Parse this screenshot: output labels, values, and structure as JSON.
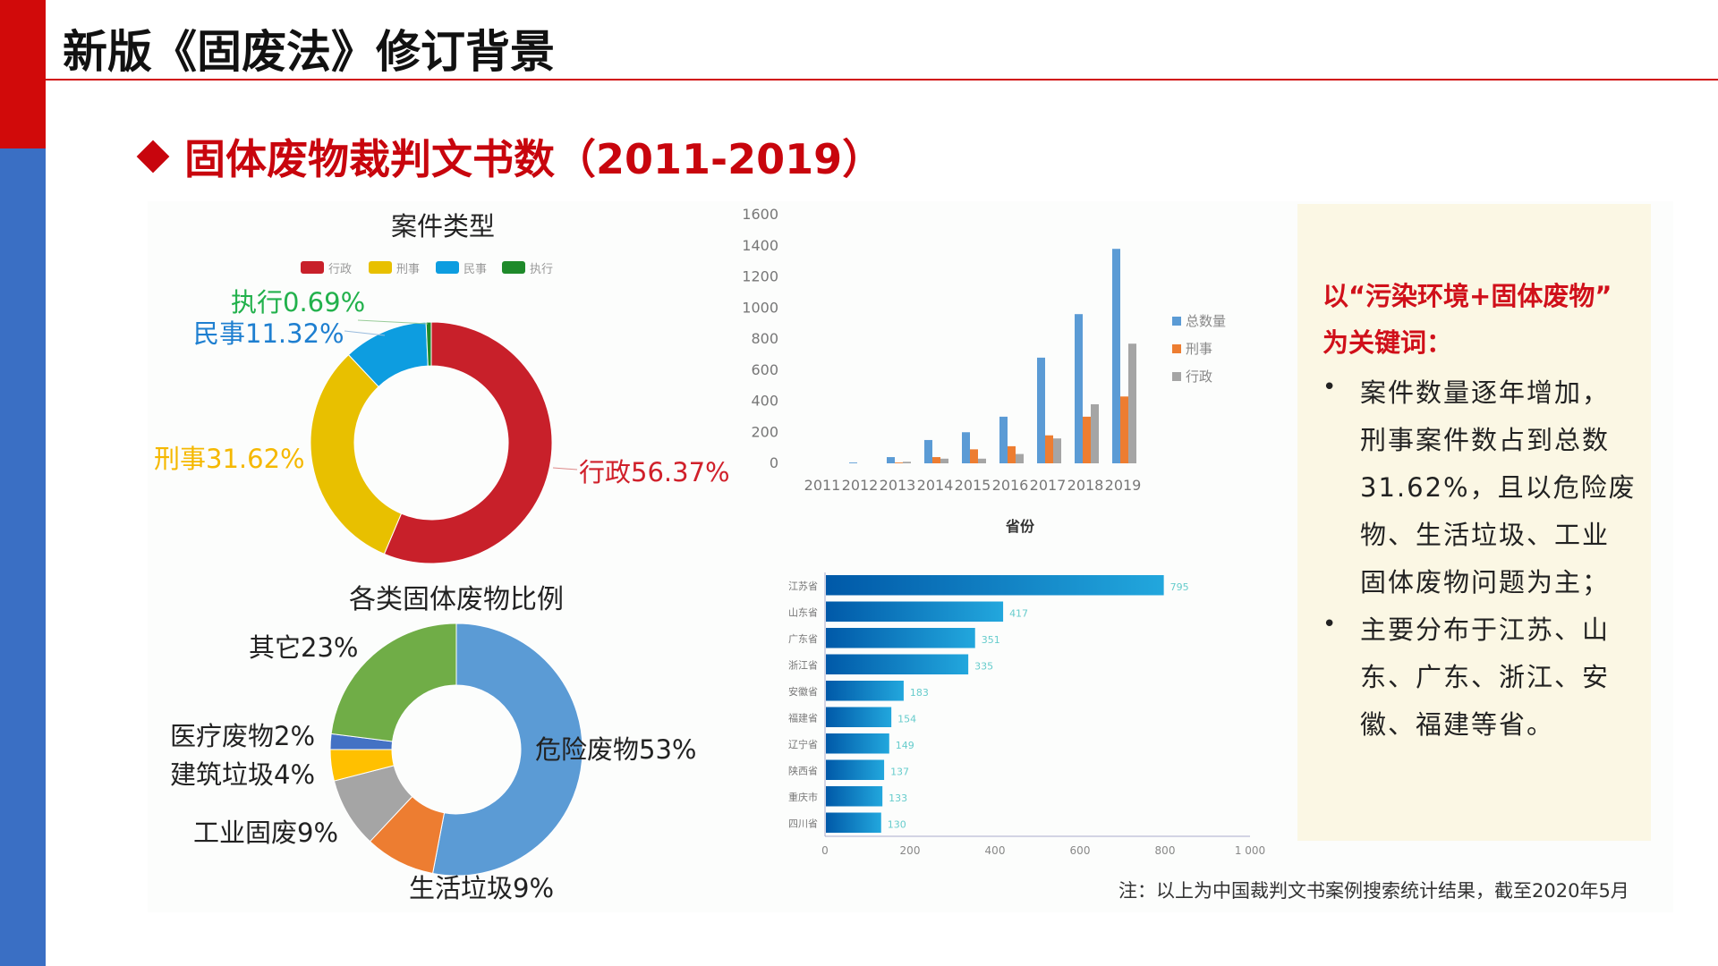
{
  "header": {
    "title": "新版《固废法》修订背景"
  },
  "subtitle": "固体废物裁判文书数（2011-2019）",
  "chart_data": [
    {
      "type": "pie",
      "variant": "donut",
      "title": "案件类型",
      "legend": [
        "行政",
        "刑事",
        "民事",
        "执行"
      ],
      "slices": [
        {
          "name": "行政",
          "value": 56.37,
          "label": "行政56.37%",
          "color": "#c8202a"
        },
        {
          "name": "刑事",
          "value": 31.62,
          "label": "刑事31.62%",
          "color": "#e8c000"
        },
        {
          "name": "民事",
          "value": 11.32,
          "label": "民事11.32%",
          "color": "#0d9de0"
        },
        {
          "name": "执行",
          "value": 0.69,
          "label": "执行0.69%",
          "color": "#1e8a2a"
        }
      ],
      "label_colors": {
        "行政": "#d0202a",
        "刑事": "#f5b800",
        "民事": "#1e7fd0",
        "执行": "#22b14c"
      }
    },
    {
      "type": "pie",
      "variant": "donut",
      "title": "各类固体废物比例",
      "slices": [
        {
          "name": "危险废物",
          "value": 53,
          "label": "危险废物53%",
          "color": "#5b9bd5"
        },
        {
          "name": "生活垃圾",
          "value": 9,
          "label": "生活垃圾9%",
          "color": "#ed7d31"
        },
        {
          "name": "工业固废",
          "value": 9,
          "label": "工业固废9%",
          "color": "#a5a5a5"
        },
        {
          "name": "建筑垃圾",
          "value": 4,
          "label": "建筑垃圾4%",
          "color": "#ffc000"
        },
        {
          "name": "医疗废物",
          "value": 2,
          "label": "医疗废物2%",
          "color": "#4472c4"
        },
        {
          "name": "其它",
          "value": 23,
          "label": "其它23%",
          "color": "#70ad47"
        }
      ]
    },
    {
      "type": "bar",
      "title": "",
      "xlabel": "",
      "ylabel": "",
      "ylim": [
        0,
        1600
      ],
      "yticks": [
        0,
        200,
        400,
        600,
        800,
        1000,
        1200,
        1400,
        1600
      ],
      "categories": [
        "2011",
        "2012",
        "2013",
        "2014",
        "2015",
        "2016",
        "2017",
        "2018",
        "2019"
      ],
      "legend_position": "right",
      "series": [
        {
          "name": "总数量",
          "color": "#5b9bd5",
          "values": [
            0,
            5,
            40,
            150,
            200,
            300,
            680,
            960,
            1380
          ]
        },
        {
          "name": "刑事",
          "color": "#ed7d31",
          "values": [
            0,
            0,
            5,
            40,
            90,
            110,
            180,
            300,
            430
          ]
        },
        {
          "name": "行政",
          "color": "#a5a5a5",
          "values": [
            0,
            0,
            10,
            30,
            30,
            60,
            160,
            380,
            770
          ]
        }
      ]
    },
    {
      "type": "bar",
      "orientation": "horizontal",
      "title": "省份",
      "xlim": [
        0,
        1000
      ],
      "xticks": [
        "0",
        "200",
        "400",
        "600",
        "800",
        "1 000"
      ],
      "categories": [
        "江苏省",
        "山东省",
        "广东省",
        "浙江省",
        "安徽省",
        "福建省",
        "辽宁省",
        "陕西省",
        "重庆市",
        "四川省"
      ],
      "values": [
        795,
        417,
        351,
        335,
        183,
        154,
        149,
        137,
        133,
        130
      ]
    }
  ],
  "notes": {
    "heading": [
      "以“污染环境+固体废物”",
      "为关键词："
    ],
    "bullets": [
      {
        "lines": [
          "案件数量逐年增加，",
          "刑事案件数占到总数",
          "31.62%，且以危险废",
          "物、生活垃圾、工业",
          "固体废物问题为主；"
        ]
      },
      {
        "lines": [
          "主要分布于江苏、山",
          "东、广东、浙江、安",
          "徽、福建等省。"
        ]
      }
    ],
    "bullet_symbol": "•"
  },
  "footnote": "注：以上为中国裁判文书案例搜索统计结果，截至2020年5月"
}
